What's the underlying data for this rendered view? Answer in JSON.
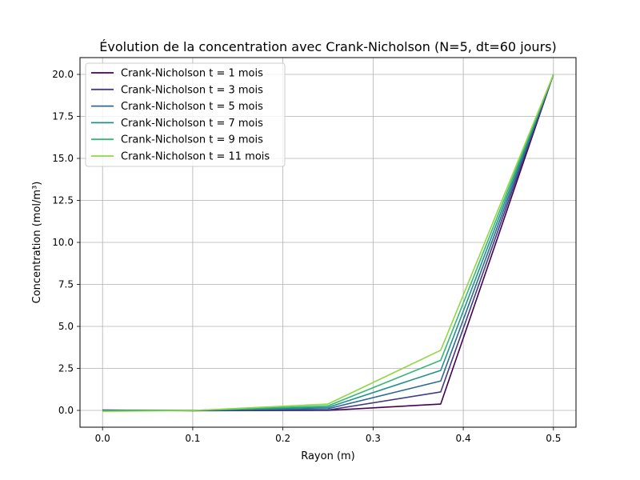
{
  "chart_data": {
    "type": "line",
    "title": "Évolution de la concentration avec Crank-Nicholson (N=5, dt=60 jours)",
    "xlabel": "Rayon (m)",
    "ylabel": "Concentration (mol/m³)",
    "xlim": [
      -0.025,
      0.525
    ],
    "ylim": [
      -1.0,
      21.0
    ],
    "xticks": [
      0.0,
      0.1,
      0.2,
      0.3,
      0.4,
      0.5
    ],
    "xtick_labels": [
      "0.0",
      "0.1",
      "0.2",
      "0.3",
      "0.4",
      "0.5"
    ],
    "yticks": [
      0.0,
      2.5,
      5.0,
      7.5,
      10.0,
      12.5,
      15.0,
      17.5,
      20.0
    ],
    "ytick_labels": [
      "0.0",
      "2.5",
      "5.0",
      "7.5",
      "10.0",
      "12.5",
      "15.0",
      "17.5",
      "20.0"
    ],
    "grid": true,
    "legend_position": "top-left",
    "x": [
      0.0,
      0.1,
      0.25,
      0.375,
      0.5
    ],
    "series": [
      {
        "name": "Crank-Nicholson t = 1 mois",
        "color": "#440154",
        "values": [
          0.02,
          -0.02,
          0.0,
          0.38,
          20.0
        ]
      },
      {
        "name": "Crank-Nicholson t = 3 mois",
        "color": "#443a83",
        "values": [
          0.0,
          -0.01,
          0.02,
          1.1,
          20.0
        ]
      },
      {
        "name": "Crank-Nicholson t = 5 mois",
        "color": "#31688e",
        "values": [
          0.0,
          0.0,
          0.1,
          1.75,
          20.0
        ]
      },
      {
        "name": "Crank-Nicholson t = 7 mois",
        "color": "#21918c",
        "values": [
          -0.01,
          0.0,
          0.18,
          2.38,
          20.0
        ]
      },
      {
        "name": "Crank-Nicholson t = 9 mois",
        "color": "#35b779",
        "values": [
          -0.03,
          0.0,
          0.27,
          2.98,
          20.0
        ]
      },
      {
        "name": "Crank-Nicholson t = 11 mois",
        "color": "#90d743",
        "values": [
          -0.06,
          -0.01,
          0.38,
          3.58,
          20.0
        ]
      }
    ]
  }
}
